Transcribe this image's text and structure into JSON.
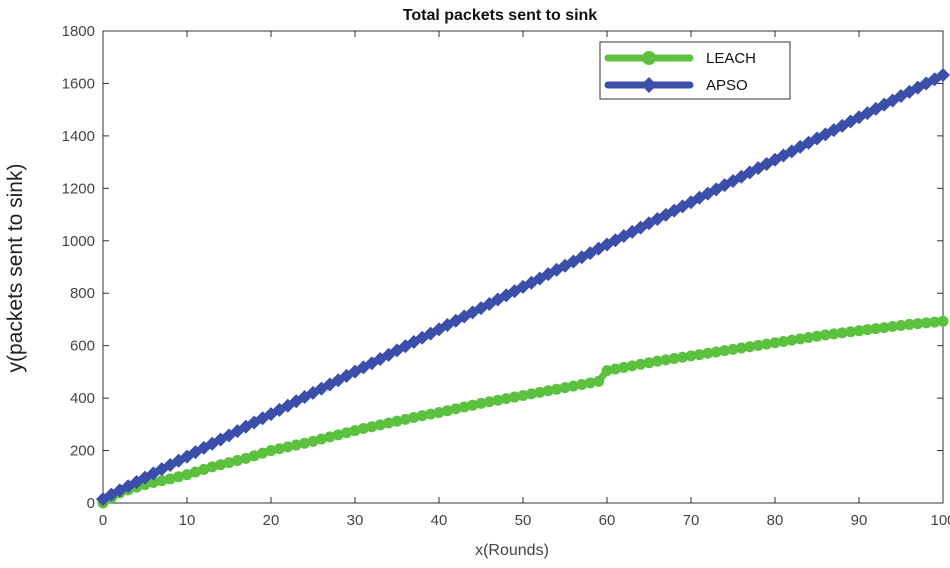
{
  "chart_data": {
    "type": "line",
    "title": "Total packets sent to sink",
    "xlabel": "x(Rounds)",
    "ylabel": "y(packets sent to sink)",
    "xlim": [
      0,
      100
    ],
    "ylim": [
      0,
      1800
    ],
    "xticks": [
      0,
      10,
      20,
      30,
      40,
      50,
      60,
      70,
      80,
      90,
      100
    ],
    "yticks": [
      0,
      200,
      400,
      600,
      800,
      1000,
      1200,
      1400,
      1600,
      1800
    ],
    "grid": false,
    "legend_position": "top-right",
    "series": [
      {
        "name": "LEACH",
        "color": "#5cc13e",
        "marker": "circle",
        "x": [
          0,
          1,
          2,
          3,
          4,
          5,
          6,
          7,
          8,
          9,
          10,
          11,
          12,
          13,
          14,
          15,
          16,
          17,
          18,
          19,
          20,
          21,
          22,
          23,
          24,
          25,
          26,
          27,
          28,
          29,
          30,
          31,
          32,
          33,
          34,
          35,
          36,
          37,
          38,
          39,
          40,
          41,
          42,
          43,
          44,
          45,
          46,
          47,
          48,
          49,
          50,
          51,
          52,
          53,
          54,
          55,
          56,
          57,
          58,
          59,
          60,
          61,
          62,
          63,
          64,
          65,
          66,
          67,
          68,
          69,
          70,
          71,
          72,
          73,
          74,
          75,
          76,
          77,
          78,
          79,
          80,
          81,
          82,
          83,
          84,
          85,
          86,
          87,
          88,
          89,
          90,
          91,
          92,
          93,
          94,
          95,
          96,
          97,
          98,
          99,
          100
        ],
        "values": [
          0,
          20,
          38,
          50,
          60,
          70,
          78,
          85,
          92,
          100,
          108,
          118,
          128,
          138,
          146,
          154,
          162,
          170,
          180,
          190,
          200,
          207,
          214,
          221,
          228,
          235,
          244,
          252,
          260,
          268,
          276,
          284,
          291,
          298,
          305,
          312,
          319,
          326,
          333,
          339,
          345,
          352,
          359,
          366,
          373,
          380,
          386,
          392,
          398,
          404,
          410,
          416,
          422,
          428,
          434,
          440,
          446,
          452,
          458,
          464,
          505,
          511,
          517,
          523,
          529,
          535,
          541,
          546,
          551,
          556,
          561,
          566,
          571,
          576,
          581,
          586,
          591,
          596,
          601,
          606,
          611,
          616,
          621,
          626,
          631,
          636,
          641,
          645,
          649,
          653,
          657,
          661,
          665,
          669,
          673,
          677,
          681,
          684,
          687,
          690,
          693
        ]
      },
      {
        "name": "APSO",
        "color": "#3a4eaa",
        "marker": "diamond",
        "x": [
          0,
          1,
          2,
          3,
          4,
          5,
          6,
          7,
          8,
          9,
          10,
          11,
          12,
          13,
          14,
          15,
          16,
          17,
          18,
          19,
          20,
          21,
          22,
          23,
          24,
          25,
          26,
          27,
          28,
          29,
          30,
          31,
          32,
          33,
          34,
          35,
          36,
          37,
          38,
          39,
          40,
          41,
          42,
          43,
          44,
          45,
          46,
          47,
          48,
          49,
          50,
          51,
          52,
          53,
          54,
          55,
          56,
          57,
          58,
          59,
          60,
          61,
          62,
          63,
          64,
          65,
          66,
          67,
          68,
          69,
          70,
          71,
          72,
          73,
          74,
          75,
          76,
          77,
          78,
          79,
          80,
          81,
          82,
          83,
          84,
          85,
          86,
          87,
          88,
          89,
          90,
          91,
          92,
          93,
          94,
          95,
          96,
          97,
          98,
          99,
          100
        ],
        "values": [
          15,
          32,
          48,
          64,
          80,
          97,
          113,
          129,
          145,
          161,
          177,
          194,
          210,
          226,
          242,
          258,
          274,
          291,
          307,
          323,
          339,
          355,
          371,
          388,
          404,
          420,
          436,
          452,
          468,
          485,
          501,
          517,
          533,
          549,
          565,
          582,
          598,
          614,
          630,
          646,
          662,
          679,
          695,
          711,
          727,
          743,
          759,
          776,
          792,
          808,
          824,
          840,
          856,
          873,
          889,
          905,
          921,
          937,
          953,
          970,
          986,
          1002,
          1018,
          1034,
          1050,
          1067,
          1083,
          1099,
          1115,
          1131,
          1147,
          1164,
          1180,
          1196,
          1212,
          1228,
          1244,
          1261,
          1277,
          1293,
          1309,
          1325,
          1341,
          1358,
          1374,
          1390,
          1406,
          1422,
          1438,
          1455,
          1471,
          1487,
          1503,
          1519,
          1535,
          1552,
          1568,
          1584,
          1600,
          1616,
          1632
        ]
      }
    ]
  }
}
